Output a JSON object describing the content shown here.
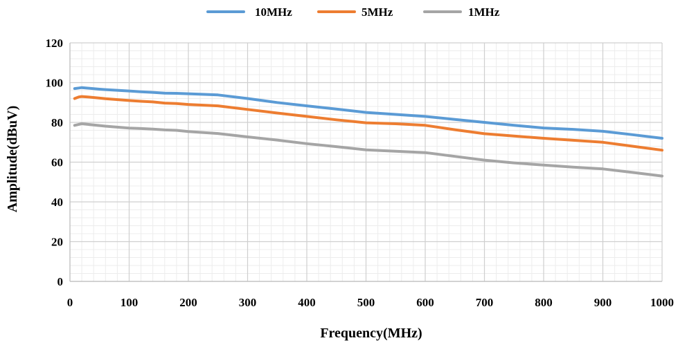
{
  "chart_data": {
    "type": "line",
    "title": "",
    "xlabel": "Frequency(MHz)",
    "ylabel": "Amplitude(dBuV)",
    "xlim": [
      0,
      1000
    ],
    "ylim": [
      0,
      120
    ],
    "x_ticks": [
      0,
      100,
      200,
      300,
      400,
      500,
      600,
      700,
      800,
      900,
      1000
    ],
    "y_ticks": [
      0,
      20,
      40,
      60,
      80,
      100,
      120
    ],
    "x_tick_labels": [
      "0",
      "100",
      "200",
      "300",
      "400",
      "500",
      "600",
      "700",
      "800",
      "900",
      "1000"
    ],
    "y_tick_labels": [
      "0",
      "20",
      "40",
      "60",
      "80",
      "100",
      "120"
    ],
    "grid": true,
    "minor_grid": true,
    "legend_position": "top",
    "series": [
      {
        "name": "10MHz",
        "color": "#5b9bd5",
        "x": [
          8,
          15,
          20,
          30,
          50,
          60,
          100,
          120,
          140,
          160,
          180,
          200,
          250,
          300,
          350,
          400,
          450,
          500,
          550,
          600,
          650,
          700,
          750,
          800,
          850,
          900,
          950,
          1000
        ],
        "y": [
          97,
          97.3,
          97.5,
          97.2,
          96.7,
          96.5,
          95.8,
          95.4,
          95.1,
          94.7,
          94.6,
          94.4,
          93.8,
          92,
          90,
          88.3,
          86.7,
          85,
          84,
          83,
          81.5,
          80,
          78.5,
          77.2,
          76.5,
          75.5,
          73.8,
          72
        ]
      },
      {
        "name": "5MHz",
        "color": "#ed7d31",
        "x": [
          8,
          15,
          20,
          30,
          50,
          60,
          100,
          120,
          140,
          160,
          180,
          200,
          250,
          300,
          350,
          400,
          450,
          500,
          550,
          600,
          650,
          700,
          750,
          800,
          850,
          900,
          950,
          1000
        ],
        "y": [
          92,
          92.8,
          93,
          92.8,
          92.2,
          91.9,
          91,
          90.6,
          90.3,
          89.7,
          89.5,
          89,
          88.3,
          86.5,
          84.7,
          83,
          81.3,
          79.8,
          79.3,
          78.5,
          76.3,
          74.3,
          73.1,
          72,
          71,
          70,
          68,
          66
        ]
      },
      {
        "name": "1MHz",
        "color": "#a5a5a5",
        "x": [
          8,
          15,
          20,
          30,
          50,
          60,
          100,
          120,
          140,
          160,
          180,
          200,
          250,
          300,
          350,
          400,
          450,
          500,
          550,
          600,
          650,
          700,
          750,
          800,
          850,
          900,
          950,
          1000
        ],
        "y": [
          78.5,
          79,
          79.3,
          79,
          78.4,
          78.1,
          77.1,
          76.9,
          76.6,
          76.2,
          76,
          75.4,
          74.4,
          72.7,
          71.1,
          69.3,
          67.8,
          66.2,
          65.5,
          64.8,
          62.9,
          61,
          59.6,
          58.5,
          57.5,
          56.6,
          54.8,
          53
        ]
      }
    ]
  }
}
